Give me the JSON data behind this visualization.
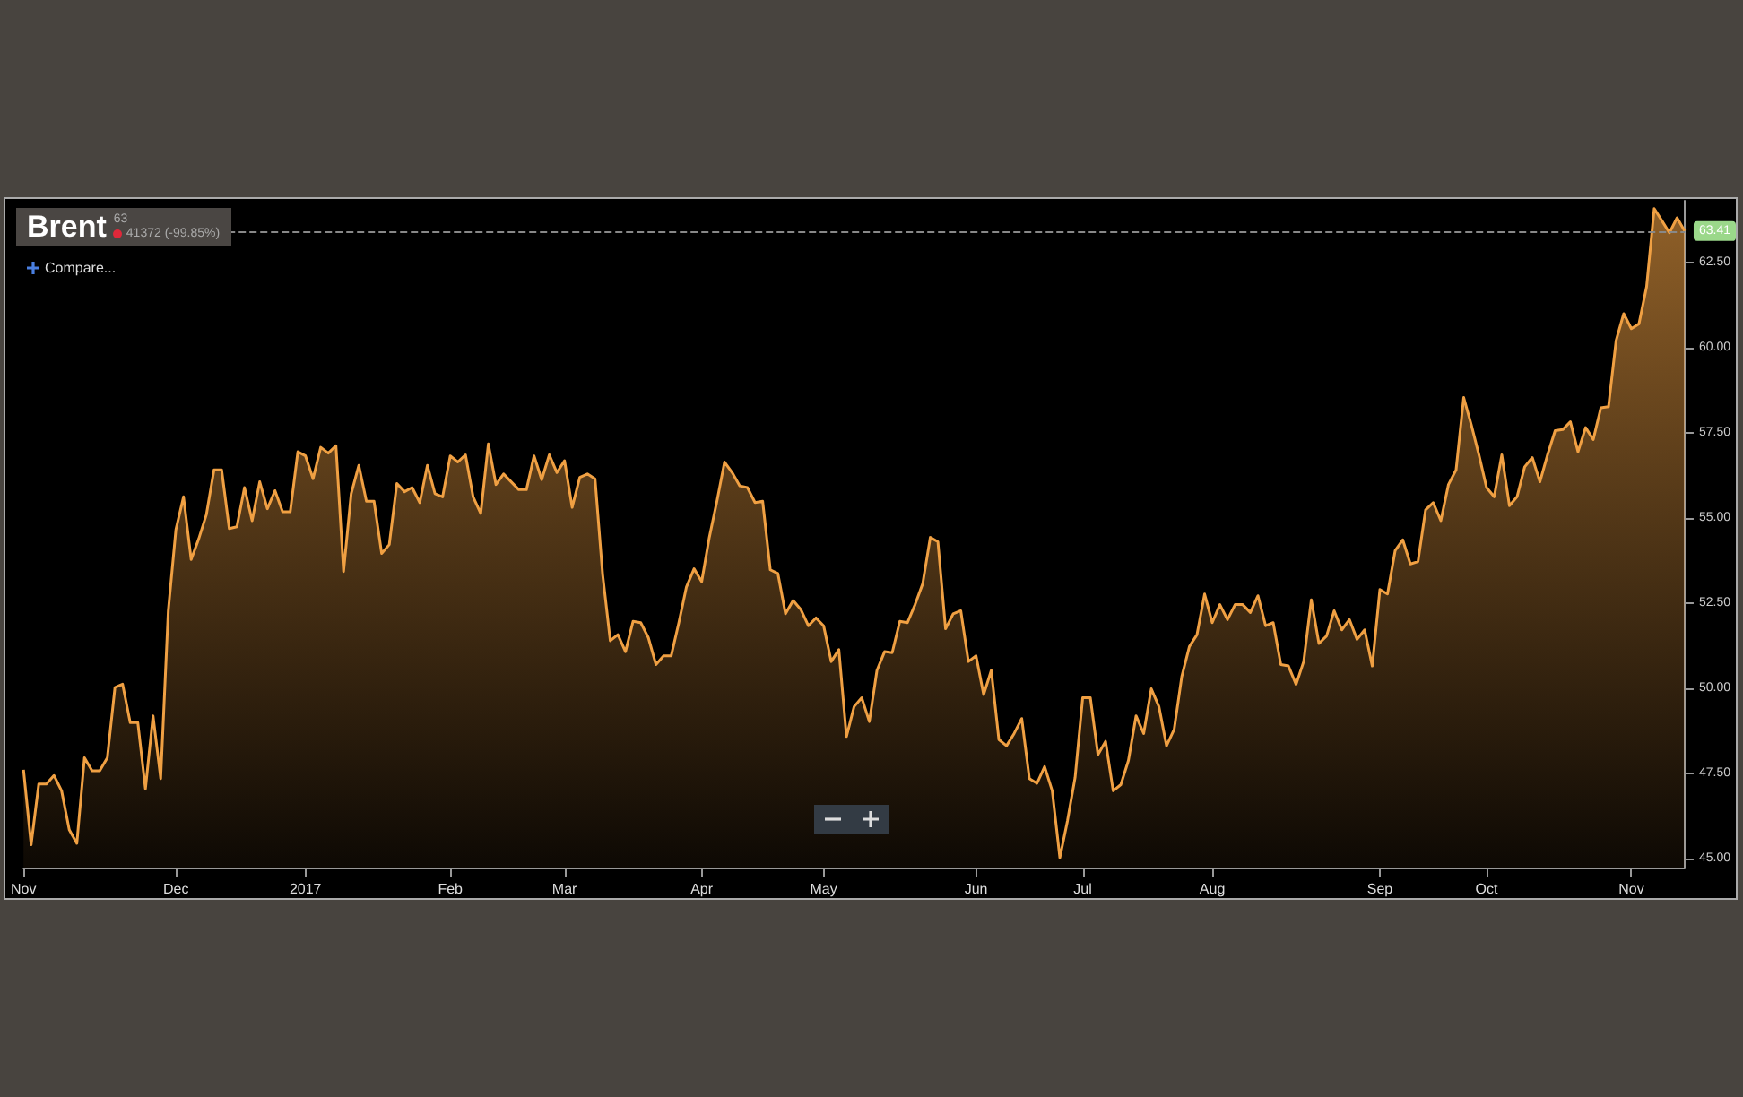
{
  "chart_data": {
    "type": "area",
    "title": "Brent",
    "annotations": [
      "63",
      "41372 (-99.85%)",
      "Compare..."
    ],
    "categories": [
      "Nov",
      null,
      null,
      null,
      null,
      null,
      null,
      null,
      null,
      null,
      null,
      null,
      null,
      null,
      null,
      null,
      null,
      null,
      null,
      null,
      "Dec",
      null,
      null,
      null,
      null,
      null,
      null,
      null,
      null,
      null,
      null,
      null,
      null,
      null,
      null,
      null,
      null,
      "2017",
      null,
      null,
      null,
      null,
      null,
      null,
      null,
      null,
      null,
      null,
      null,
      null,
      null,
      null,
      null,
      null,
      null,
      null,
      "Feb",
      null,
      null,
      null,
      null,
      null,
      null,
      null,
      null,
      null,
      null,
      null,
      null,
      null,
      null,
      "Mar",
      null,
      null,
      null,
      null,
      null,
      null,
      null,
      null,
      null,
      null,
      null,
      null,
      null,
      null,
      null,
      null,
      null,
      "Apr",
      null,
      null,
      null,
      null,
      null,
      null,
      null,
      null,
      null,
      null,
      null,
      null,
      null,
      null,
      null,
      "May",
      null,
      null,
      null,
      null,
      null,
      null,
      null,
      null,
      null,
      null,
      null,
      null,
      null,
      null,
      null,
      null,
      null,
      null,
      null,
      "Jun",
      null,
      null,
      null,
      null,
      null,
      null,
      null,
      null,
      null,
      null,
      null,
      null,
      null,
      "Jul",
      null,
      null,
      null,
      null,
      null,
      null,
      null,
      null,
      null,
      null,
      null,
      null,
      null,
      null,
      null,
      null,
      "Aug",
      null,
      null,
      null,
      null,
      null,
      null,
      null,
      null,
      null,
      null,
      null,
      null,
      null,
      null,
      null,
      null,
      null,
      null,
      null,
      null,
      null,
      "Sep",
      null,
      null,
      null,
      null,
      null,
      null,
      null,
      null,
      null,
      null,
      null,
      null,
      null,
      "Oct",
      null,
      null,
      null,
      null,
      null,
      null,
      null,
      null,
      null,
      null,
      null,
      null,
      null,
      null,
      null,
      null,
      null,
      null,
      "Nov",
      null,
      null,
      null,
      null,
      null,
      null,
      null
    ],
    "values": [
      47.62,
      45.42,
      47.2,
      47.2,
      47.45,
      47.0,
      45.86,
      45.46,
      47.97,
      47.59,
      47.59,
      47.97,
      50.03,
      50.13,
      49.0,
      49.0,
      47.06,
      49.2,
      47.36,
      52.28,
      54.66,
      55.62,
      53.78,
      54.39,
      55.1,
      56.41,
      56.41,
      54.69,
      54.74,
      55.89,
      54.92,
      56.06,
      55.27,
      55.8,
      55.18,
      55.18,
      56.94,
      56.82,
      56.15,
      57.07,
      56.9,
      57.12,
      53.43,
      55.71,
      56.54,
      55.49,
      55.49,
      53.96,
      54.22,
      56.01,
      55.77,
      55.89,
      55.45,
      56.54,
      55.71,
      55.62,
      56.82,
      56.64,
      56.85,
      55.62,
      55.13,
      57.17,
      55.98,
      56.29,
      56.06,
      55.83,
      55.83,
      56.82,
      56.12,
      56.85,
      56.33,
      56.68,
      55.31,
      56.19,
      56.29,
      56.15,
      53.34,
      51.4,
      51.58,
      51.08,
      51.97,
      51.93,
      51.49,
      50.7,
      50.96,
      50.96,
      51.93,
      52.98,
      53.51,
      53.13,
      54.43,
      55.49,
      56.64,
      56.33,
      55.94,
      55.89,
      55.45,
      55.49,
      53.48,
      53.37,
      52.19,
      52.58,
      52.32,
      51.84,
      52.07,
      51.84,
      50.79,
      51.14,
      48.59,
      49.47,
      49.73,
      49.03,
      50.53,
      51.08,
      51.05,
      51.97,
      51.93,
      52.46,
      53.07,
      54.43,
      54.3,
      51.75,
      52.19,
      52.28,
      50.79,
      50.96,
      49.82,
      50.53,
      48.5,
      48.32,
      48.68,
      49.12,
      47.36,
      47.22,
      47.71,
      47.0,
      45.04,
      46.12,
      47.39,
      49.73,
      49.73,
      48.06,
      48.45,
      47.0,
      47.18,
      47.89,
      49.2,
      48.68,
      49.99,
      49.47,
      48.32,
      48.8,
      50.35,
      51.23,
      51.58,
      52.77,
      51.93,
      52.46,
      52.02,
      52.46,
      52.46,
      52.23,
      52.72,
      51.84,
      51.93,
      50.7,
      50.66,
      50.12,
      50.79,
      52.6,
      51.32,
      51.54,
      52.28,
      51.72,
      52.02,
      51.44,
      51.72,
      50.66,
      52.9,
      52.77,
      54.04,
      54.36,
      53.65,
      53.72,
      55.24,
      55.45,
      54.92,
      55.98,
      56.41,
      58.53,
      57.73,
      56.85,
      55.89,
      55.62,
      56.85,
      55.36,
      55.62,
      56.5,
      56.77,
      56.06,
      56.85,
      57.56,
      57.59,
      57.82,
      56.94,
      57.65,
      57.3,
      58.23,
      58.26,
      60.2,
      60.99,
      60.55,
      60.69,
      61.78,
      64.07,
      63.72,
      63.36,
      63.8,
      63.41
    ],
    "color": "#f0a043",
    "ylim": [
      44.75,
      64.3
    ],
    "yticks": [
      {
        "value": 45,
        "label": "45.00"
      },
      {
        "value": 47.5,
        "label": "47.50"
      },
      {
        "value": 50,
        "label": "50.00"
      },
      {
        "value": 52.5,
        "label": "52.50"
      },
      {
        "value": 55,
        "label": "55.00"
      },
      {
        "value": 57.5,
        "label": "57.50"
      },
      {
        "value": 60,
        "label": "60.00"
      },
      {
        "value": 62.5,
        "label": "62.50"
      }
    ],
    "ref_lines": [
      {
        "axis": "y",
        "value": 63.41,
        "label": "63.41",
        "color": "#888888",
        "line_style": "dashed"
      }
    ]
  }
}
